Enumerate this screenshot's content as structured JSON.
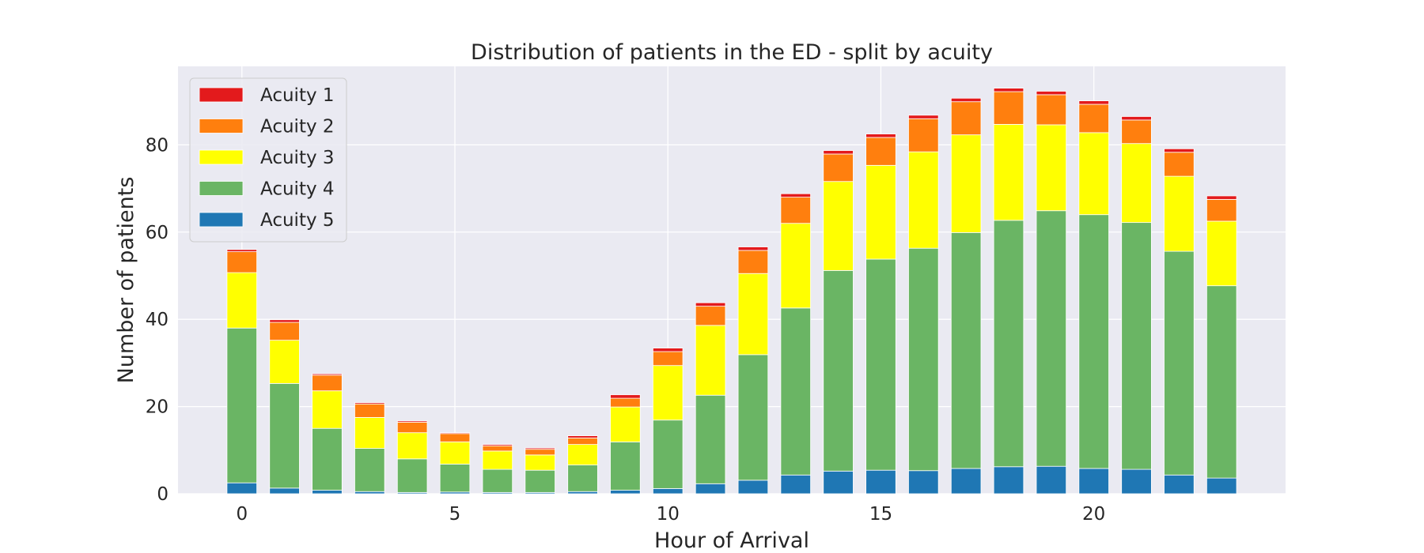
{
  "chart_data": {
    "type": "bar",
    "stacked": true,
    "title": "Distribution of patients in the ED - split by acuity",
    "xlabel": "Hour of Arrival",
    "ylabel": "Number of patients",
    "x": [
      0,
      1,
      2,
      3,
      4,
      5,
      6,
      7,
      8,
      9,
      10,
      11,
      12,
      13,
      14,
      15,
      16,
      17,
      18,
      19,
      20,
      21,
      22,
      23
    ],
    "xticks": [
      0,
      5,
      10,
      15,
      20
    ],
    "yticks": [
      0,
      20,
      40,
      60,
      80
    ],
    "xlim": [
      -1.5,
      24.5
    ],
    "ylim": [
      0,
      98
    ],
    "grid": true,
    "legend_position": "top-left",
    "series": [
      {
        "name": "Acuity 5",
        "color": "#1f77b4",
        "values": [
          2.5,
          1.3,
          0.8,
          0.5,
          0.3,
          0.4,
          0.3,
          0.3,
          0.5,
          0.8,
          1.2,
          2.3,
          3.1,
          4.3,
          5.2,
          5.4,
          5.3,
          5.8,
          6.2,
          6.3,
          5.8,
          5.6,
          4.3,
          3.6
        ]
      },
      {
        "name": "Acuity 4",
        "color": "#6ab564",
        "values": [
          35.5,
          24.0,
          14.2,
          9.9,
          7.7,
          6.4,
          5.3,
          5.1,
          6.1,
          11.1,
          15.7,
          20.3,
          28.8,
          38.3,
          46.0,
          48.4,
          51.0,
          54.1,
          56.5,
          58.6,
          58.2,
          56.6,
          51.3,
          44.1
        ]
      },
      {
        "name": "Acuity 3",
        "color": "#ffff00",
        "values": [
          12.7,
          9.9,
          8.6,
          7.1,
          6.0,
          5.1,
          4.2,
          3.5,
          4.7,
          8.0,
          12.5,
          16.0,
          18.6,
          19.4,
          20.4,
          21.5,
          22.1,
          22.4,
          22.0,
          19.7,
          18.8,
          18.1,
          17.2,
          14.8
        ]
      },
      {
        "name": "Acuity 2",
        "color": "#ff7f0e",
        "values": [
          4.8,
          4.1,
          3.6,
          3.1,
          2.4,
          1.9,
          1.2,
          1.3,
          1.5,
          2.0,
          3.2,
          4.4,
          5.3,
          6.0,
          6.3,
          6.4,
          7.6,
          7.6,
          7.5,
          6.9,
          6.5,
          5.4,
          5.5,
          5.0
        ]
      },
      {
        "name": "Acuity 1",
        "color": "#e31a1c",
        "values": [
          0.5,
          0.6,
          0.3,
          0.3,
          0.3,
          0.2,
          0.3,
          0.3,
          0.5,
          0.8,
          0.8,
          0.8,
          0.8,
          0.8,
          0.8,
          0.8,
          0.8,
          0.8,
          0.8,
          0.8,
          0.8,
          0.8,
          0.8,
          0.8
        ]
      }
    ]
  }
}
